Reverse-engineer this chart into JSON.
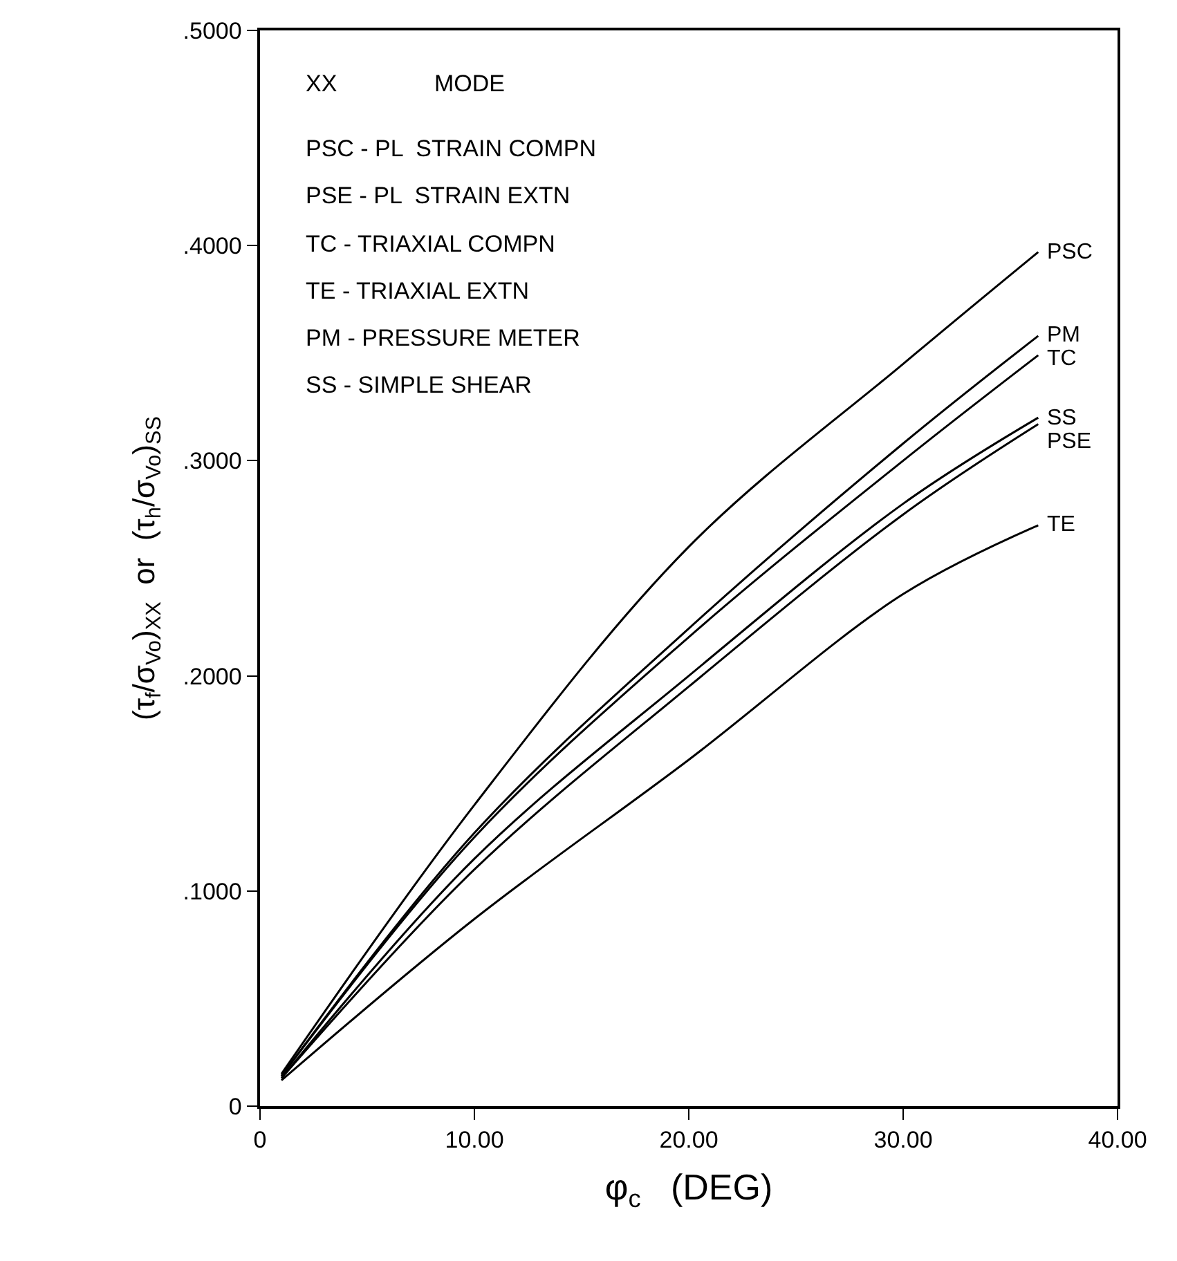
{
  "chart_data": {
    "type": "line",
    "xlabel": "φ$_{c}$   (DEG)",
    "ylabel": "(τ$_{f}$/σ$_{Vo}$)$_{XX}$  or  (τ$_{h}$/σ$_{Vo}$)$_{SS}$",
    "x": [
      1,
      10,
      20,
      30,
      36.3
    ],
    "series": [
      {
        "name": "PSC",
        "color": "#000000",
        "values": [
          0.015,
          0.14,
          0.26,
          0.345,
          0.397
        ]
      },
      {
        "name": "PM",
        "color": "#000000",
        "values": [
          0.014,
          0.127,
          0.222,
          0.308,
          0.358
        ]
      },
      {
        "name": "TC",
        "color": "#000000",
        "values": [
          0.014,
          0.125,
          0.218,
          0.3,
          0.349
        ]
      },
      {
        "name": "SS",
        "color": "#000000",
        "values": [
          0.013,
          0.115,
          0.2,
          0.28,
          0.32
        ]
      },
      {
        "name": "PSE",
        "color": "#000000",
        "values": [
          0.013,
          0.11,
          0.195,
          0.275,
          0.317
        ]
      },
      {
        "name": "TE",
        "color": "#000000",
        "values": [
          0.012,
          0.087,
          0.161,
          0.238,
          0.27
        ]
      }
    ],
    "annotations": [
      "XX",
      "MODE",
      "PSC - PL  STRAIN COMPN",
      "PSE - PL  STRAIN EXTN",
      "TC - TRIAXIAL COMPN",
      "TE - TRIAXIAL EXTN",
      "PM - PRESSURE METER",
      "SS - SIMPLE SHEAR"
    ],
    "xlim": [
      0,
      40
    ],
    "xticks": [
      0,
      {
        "value": 10,
        "label": "10.00"
      },
      {
        "value": 20,
        "label": "20.00"
      },
      {
        "value": 30,
        "label": "30.00"
      },
      {
        "value": 40,
        "label": "40.00"
      }
    ],
    "ylim": [
      0,
      0.5
    ],
    "yticks": [
      0,
      {
        "value": 0.1,
        "label": ".1000"
      },
      {
        "value": 0.2,
        "label": ".2000"
      },
      {
        "value": 0.3,
        "label": ".3000"
      },
      {
        "value": 0.4,
        "label": ".4000"
      },
      {
        "value": 0.5,
        "label": ".5000"
      }
    ],
    "grid": false,
    "legend": false,
    "line_style": "solid",
    "marker": "none"
  }
}
